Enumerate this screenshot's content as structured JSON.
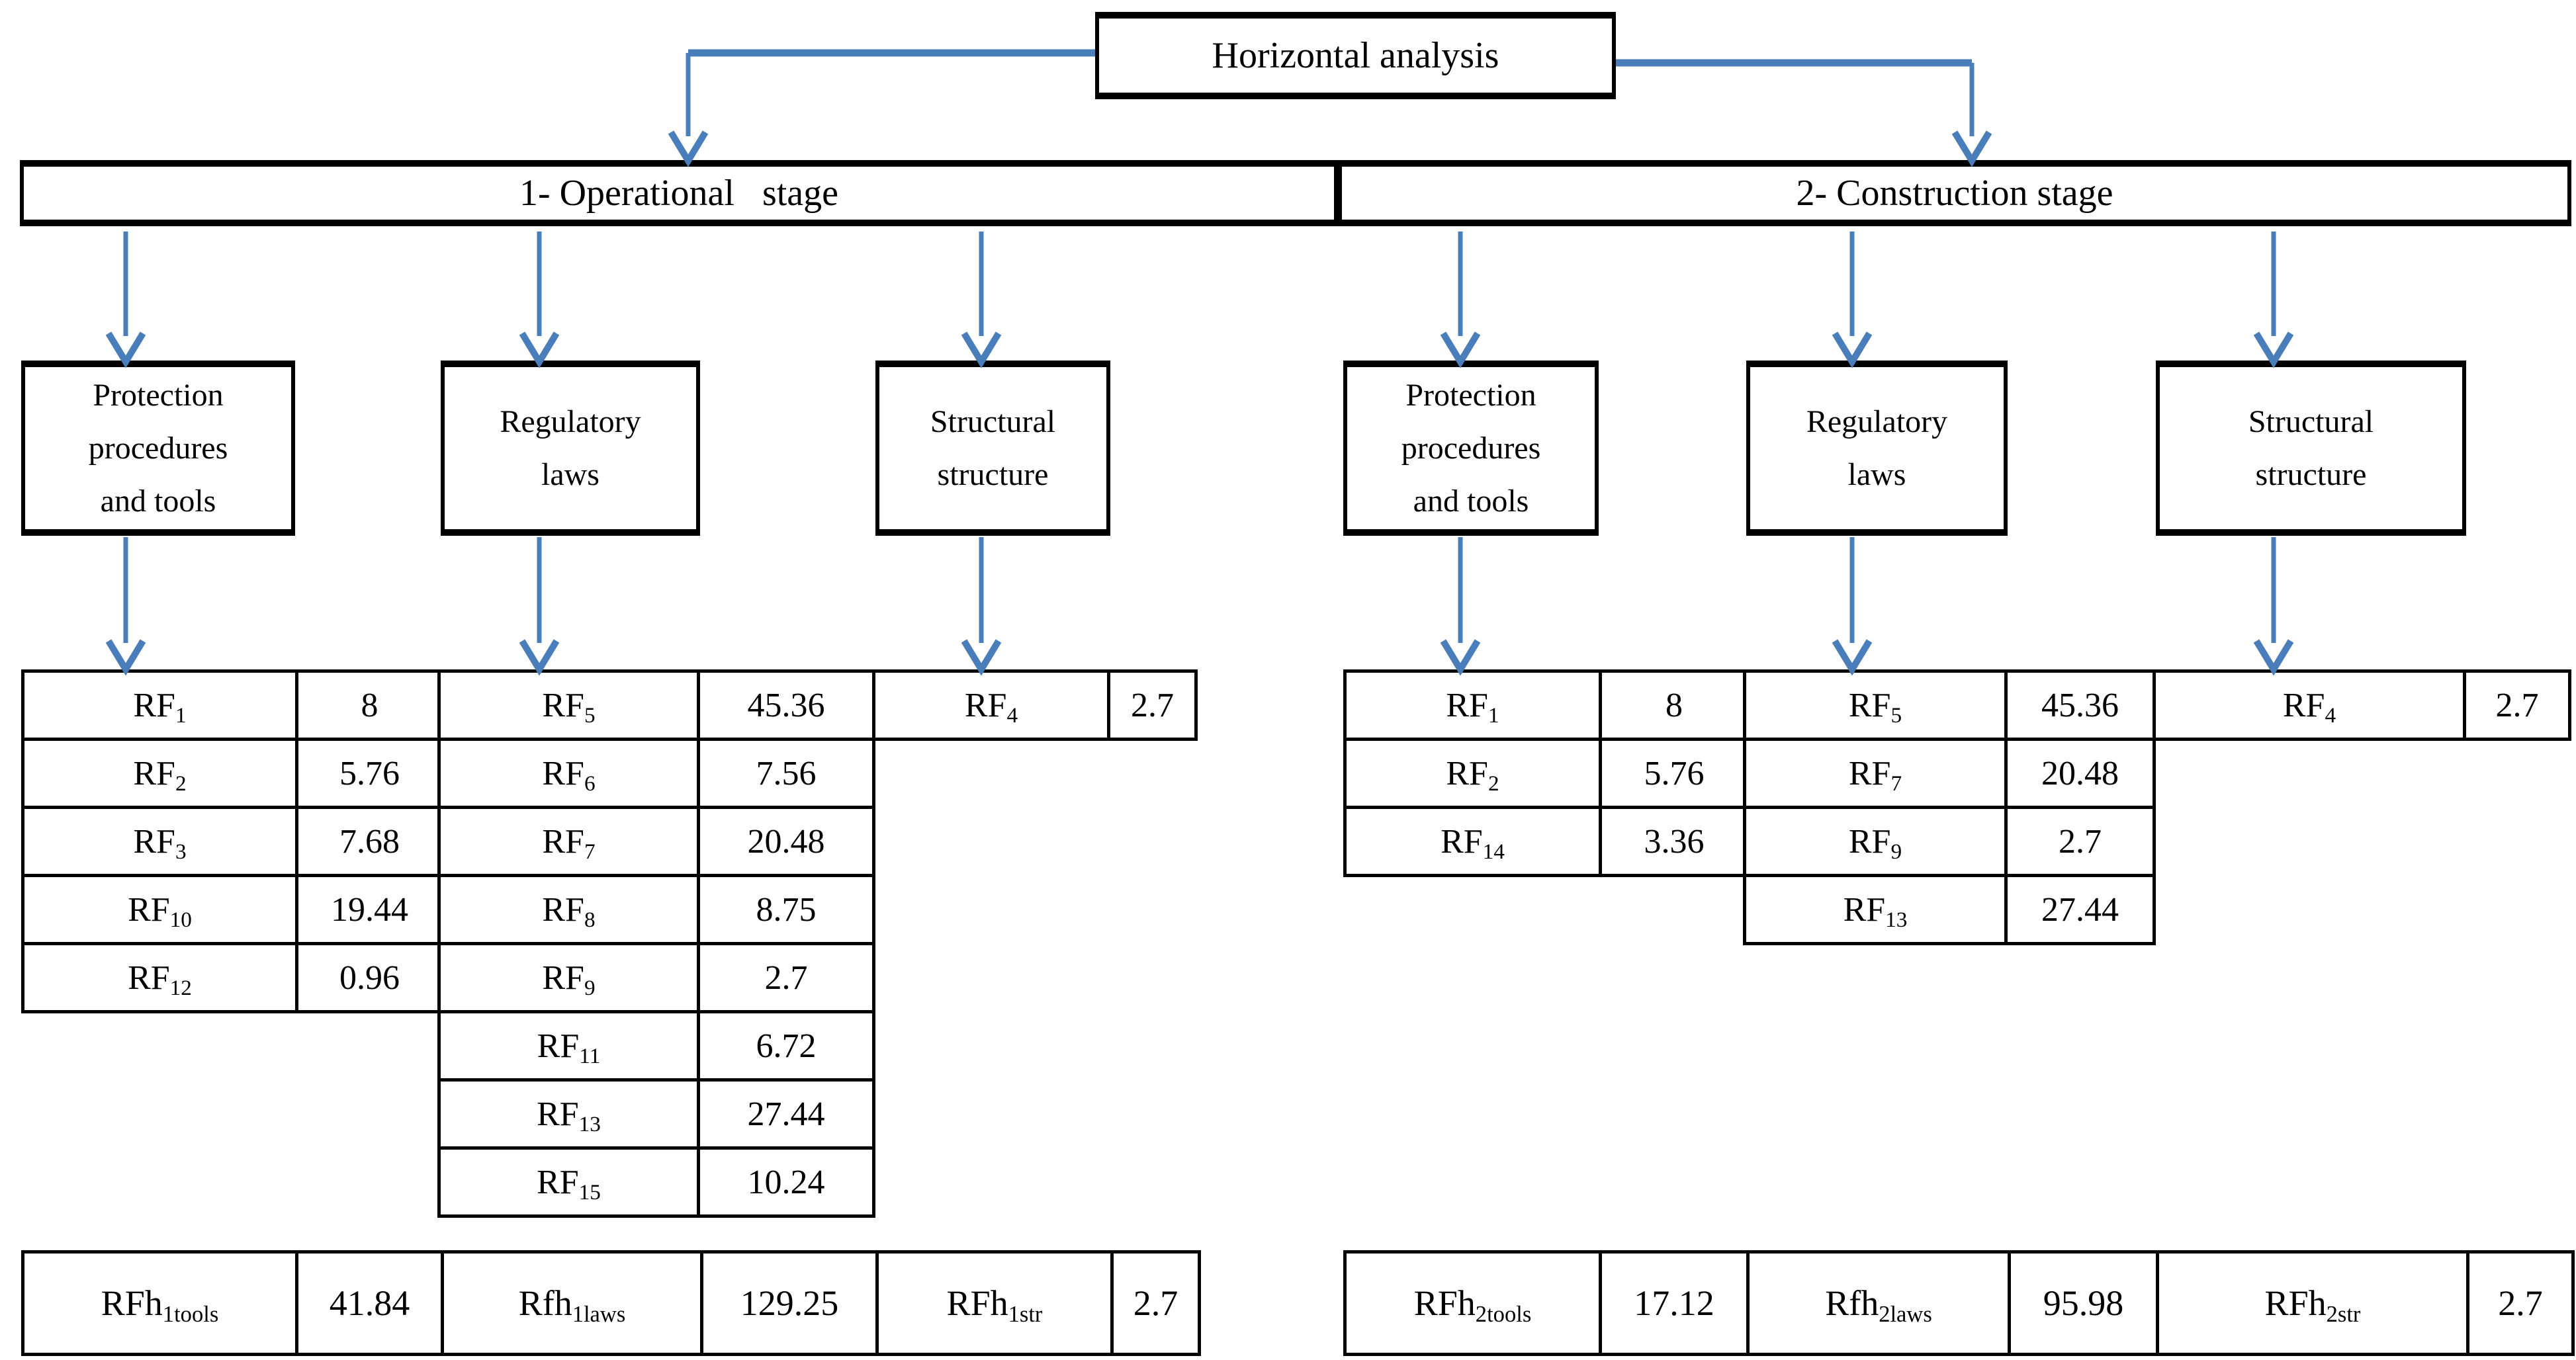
{
  "colors": {
    "arrow_blue": "#4a7ebb",
    "line_black": "#000000"
  },
  "title": {
    "label": "Horizontal analysis"
  },
  "left": {
    "stage_label": "1- Operational   stage",
    "boxes": {
      "protection": {
        "lines": [
          "Protection",
          "procedures",
          "and tools"
        ]
      },
      "regulatory": {
        "lines": [
          "Regulatory",
          "laws"
        ]
      },
      "structural": {
        "lines": [
          "Structural",
          "structure"
        ]
      }
    },
    "tables": {
      "protection": [
        {
          "base": "RF",
          "sub": "1",
          "value": "8"
        },
        {
          "base": "RF",
          "sub": "2",
          "value": "5.76"
        },
        {
          "base": "RF",
          "sub": "3",
          "value": "7.68"
        },
        {
          "base": "RF",
          "sub": "10",
          "value": "19.44"
        },
        {
          "base": "RF",
          "sub": "12",
          "value": "0.96"
        }
      ],
      "regulatory": [
        {
          "base": "RF",
          "sub": "5",
          "value": "45.36"
        },
        {
          "base": "RF",
          "sub": "6",
          "value": "7.56"
        },
        {
          "base": "RF",
          "sub": "7",
          "value": "20.48"
        },
        {
          "base": "RF",
          "sub": "8",
          "value": "8.75"
        },
        {
          "base": "RF",
          "sub": "9",
          "value": "2.7"
        },
        {
          "base": "RF",
          "sub": "11",
          "value": "6.72"
        },
        {
          "base": "RF",
          "sub": "13",
          "value": "27.44"
        },
        {
          "base": "RF",
          "sub": "15",
          "value": "10.24"
        }
      ],
      "structural": [
        {
          "base": "RF",
          "sub": "4",
          "value": "2.7"
        }
      ]
    },
    "summary": [
      {
        "base": "RFh",
        "sub": "1tools",
        "value": "41.84"
      },
      {
        "base": "Rfh",
        "sub": "1laws",
        "value": "129.25"
      },
      {
        "base": "RFh",
        "sub": "1str",
        "value": "2.7"
      }
    ]
  },
  "right": {
    "stage_label": "2- Construction stage",
    "boxes": {
      "protection": {
        "lines": [
          "Protection",
          "procedures",
          "and tools"
        ]
      },
      "regulatory": {
        "lines": [
          "Regulatory",
          "laws"
        ]
      },
      "structural": {
        "lines": [
          "Structural",
          "structure"
        ]
      }
    },
    "tables": {
      "protection": [
        {
          "base": "RF",
          "sub": "1",
          "value": "8"
        },
        {
          "base": "RF",
          "sub": "2",
          "value": "5.76"
        },
        {
          "base": "RF",
          "sub": "14",
          "value": "3.36"
        }
      ],
      "regulatory": [
        {
          "base": "RF",
          "sub": "5",
          "value": "45.36"
        },
        {
          "base": "RF",
          "sub": "7",
          "value": "20.48"
        },
        {
          "base": "RF",
          "sub": "9",
          "value": "2.7"
        },
        {
          "base": "RF",
          "sub": "13",
          "value": "27.44"
        }
      ],
      "structural": [
        {
          "base": "RF",
          "sub": "4",
          "value": "2.7"
        }
      ]
    },
    "summary": [
      {
        "base": "RFh",
        "sub": "2tools",
        "value": "17.12"
      },
      {
        "base": "Rfh",
        "sub": "2laws",
        "value": "95.98"
      },
      {
        "base": "RFh",
        "sub": "2str",
        "value": "2.7"
      }
    ]
  }
}
